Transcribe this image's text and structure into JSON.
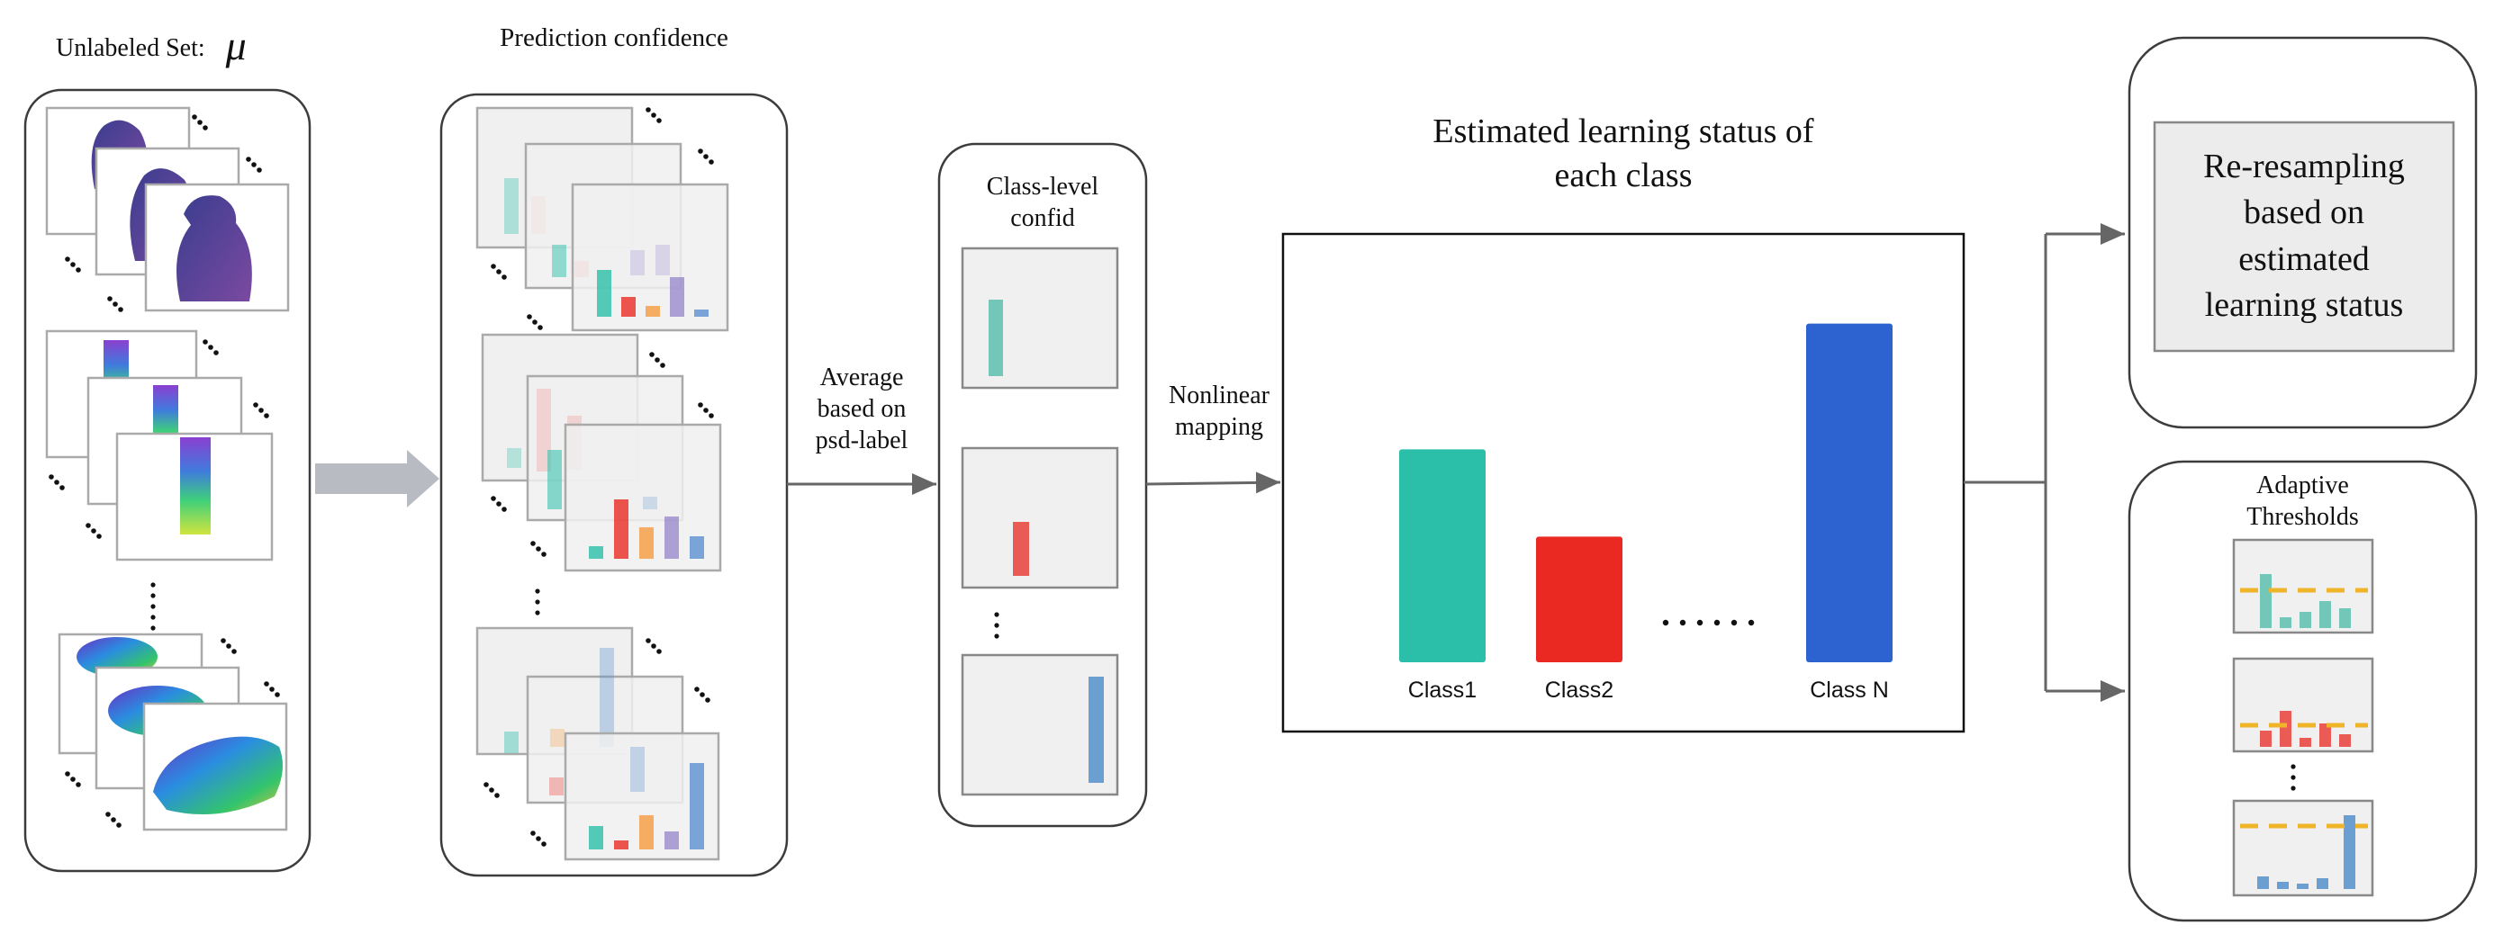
{
  "unlabeled_set": {
    "label": "Unlabeled Set:",
    "symbol": "μ"
  },
  "prediction_confidence": {
    "title": "Prediction confidence"
  },
  "arrow_average": {
    "lines": [
      "Average",
      "based on",
      "psd-label"
    ]
  },
  "class_level": {
    "lines": [
      "Class-level",
      "confid"
    ]
  },
  "arrow_nonlinear": {
    "lines": [
      "Nonlinear",
      "mapping"
    ]
  },
  "status_chart": {
    "title_lines": [
      "Estimated learning status of",
      "each class"
    ],
    "ellipsis": "......"
  },
  "resampling": {
    "lines": [
      "Re-resampling",
      "based on",
      "estimated",
      "learning status"
    ]
  },
  "adaptive": {
    "lines": [
      "Adaptive",
      "Thresholds"
    ]
  },
  "colors": {
    "teal": "#2bbfa9",
    "red": "#ea2a22",
    "blue": "#2d63d1",
    "threshold": "#f0b429",
    "panel_border": "#3c3c3c",
    "arrow": "#666666",
    "big_arrow": "#b8bcc2"
  },
  "chart_data": {
    "type": "bar",
    "categories": [
      "Class1",
      "Class2",
      "Class N"
    ],
    "values": [
      0.61,
      0.36,
      0.97
    ],
    "colors": [
      "#2bbfa9",
      "#ea2a22",
      "#2d63d1"
    ],
    "ylim": [
      0,
      1
    ]
  }
}
